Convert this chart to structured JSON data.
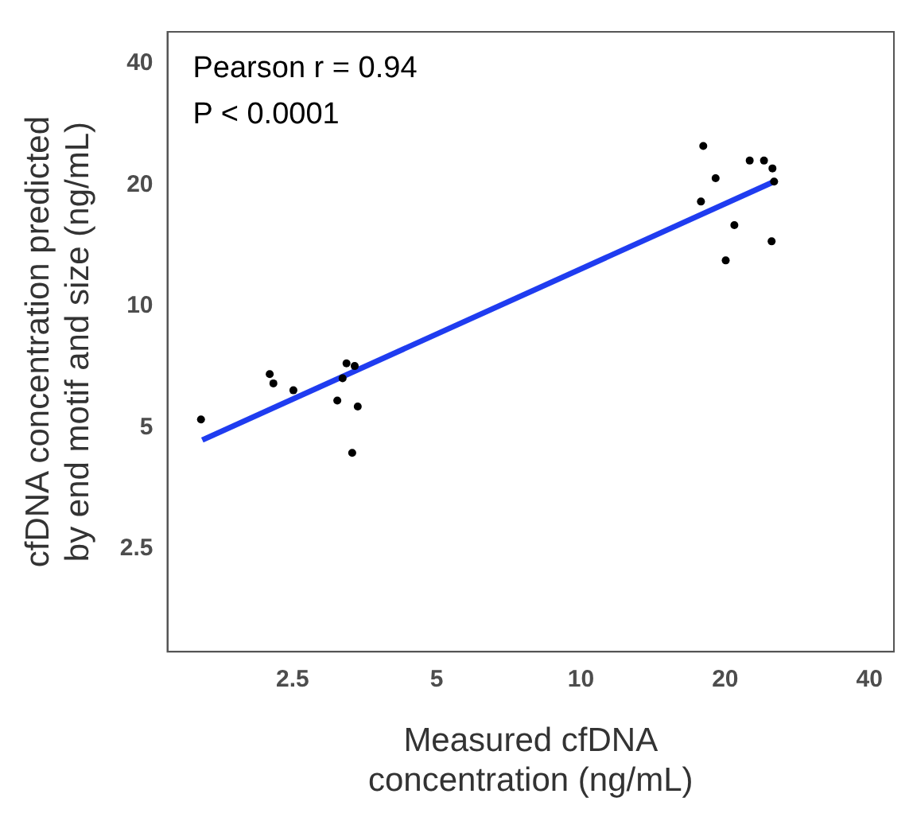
{
  "chart_data": {
    "type": "scatter",
    "xlabel": "Measured cfDNA\nconcentration (ng/mL)",
    "ylabel": "cfDNA concentration predicted\nby end motif and size (ng/mL)",
    "annotations": [
      "Pearson r = 0.94",
      "P < 0.0001"
    ],
    "log": "xy",
    "grid": false,
    "legend": false,
    "xlim": [
      1.37,
      45
    ],
    "ylim": [
      1.39,
      48
    ],
    "xticks": [
      2.5,
      5,
      10,
      20,
      40
    ],
    "yticks": [
      2.5,
      5,
      10,
      20,
      40
    ],
    "series": [
      {
        "color": "#000000",
        "marker": "circle",
        "x": [
          1.61,
          2.24,
          2.28,
          2.51,
          3.1,
          3.18,
          3.24,
          3.37,
          3.42,
          3.33,
          18.0,
          17.8,
          19.1,
          22.5,
          24.1,
          25.1,
          25.3,
          20.9,
          20.05,
          25.0
        ],
        "values": [
          5.24,
          6.79,
          6.44,
          6.19,
          5.84,
          6.63,
          7.22,
          7.11,
          5.64,
          4.33,
          25.0,
          18.2,
          20.8,
          23.0,
          23.0,
          22.0,
          20.4,
          15.9,
          13.0,
          14.5
        ]
      },
      {
        "type": "line",
        "color": "#1f3cf0",
        "marker": "none",
        "x": [
          1.62,
          25.3
        ],
        "values": [
          4.66,
          20.4
        ]
      }
    ]
  }
}
